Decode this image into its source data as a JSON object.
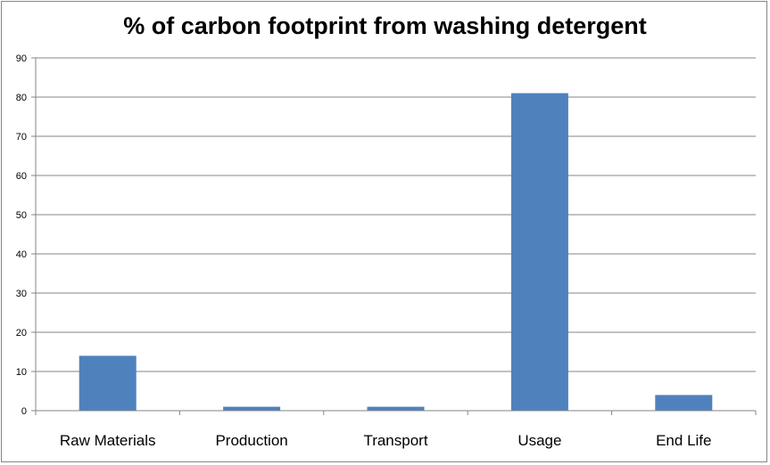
{
  "chart_data": {
    "type": "bar",
    "title": "% of carbon footprint from washing detergent",
    "xlabel": "",
    "ylabel": "",
    "categories": [
      "Raw Materials",
      "Production",
      "Transport",
      "Usage",
      "End Life"
    ],
    "values": [
      14,
      1,
      1,
      81,
      4
    ],
    "ylim": [
      0,
      90
    ],
    "yticks": [
      0,
      10,
      20,
      30,
      40,
      50,
      60,
      70,
      80,
      90
    ],
    "grid": true,
    "legend": "none",
    "bar_color": "#4F81BD",
    "grid_color": "#868686"
  }
}
